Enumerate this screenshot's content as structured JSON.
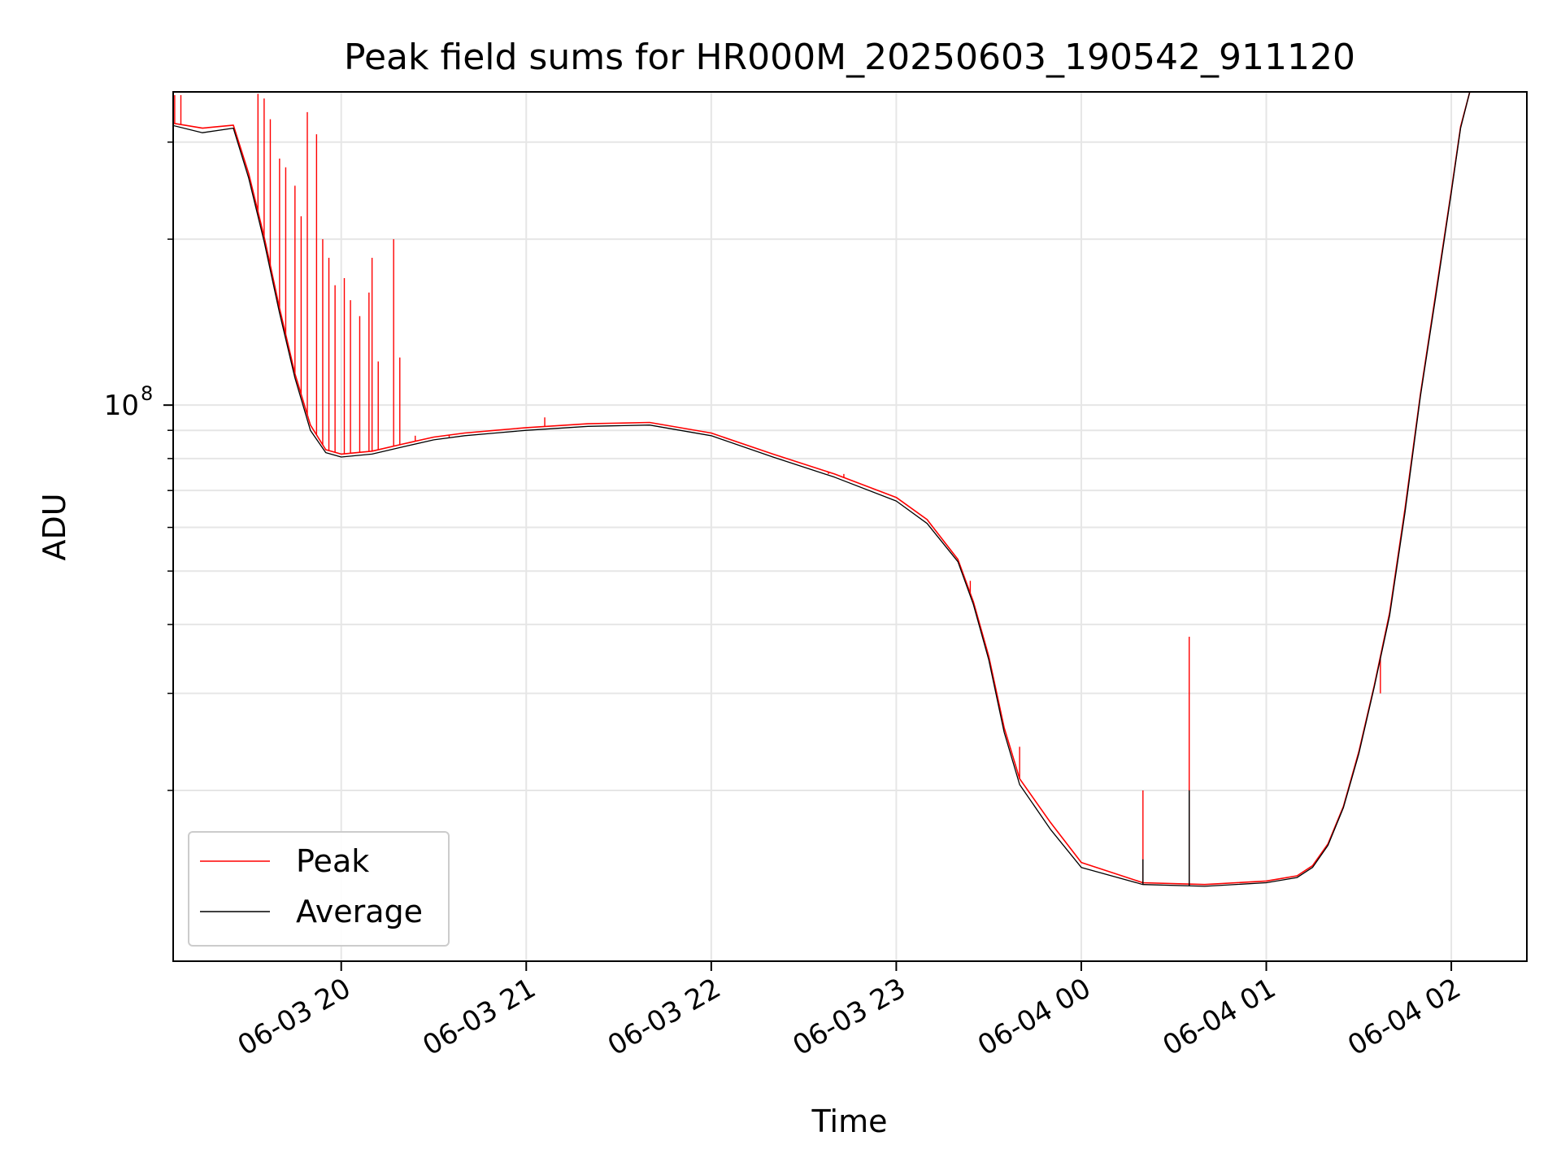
{
  "chart_data": {
    "type": "line",
    "title": "Peak field sums for HR000M_20250603_190542_911120",
    "xlabel": "Time",
    "ylabel": "ADU",
    "y_scale": "log",
    "ylim": [
      9800000,
      370000000
    ],
    "xlim": [
      "2025-06-03 19:05:30",
      "2025-06-04 02:24:30"
    ],
    "grid": true,
    "legend_placement": "lower-left",
    "x_ticks": [
      {
        "value": "2025-06-03 20:00",
        "label": "06-03 20"
      },
      {
        "value": "2025-06-03 21:00",
        "label": "06-03 21"
      },
      {
        "value": "2025-06-03 22:00",
        "label": "06-03 22"
      },
      {
        "value": "2025-06-03 23:00",
        "label": "06-03 23"
      },
      {
        "value": "2025-06-04 00:00",
        "label": "06-04 00"
      },
      {
        "value": "2025-06-04 01:00",
        "label": "06-04 01"
      },
      {
        "value": "2025-06-04 02:00",
        "label": "06-04 02"
      }
    ],
    "y_major_ticks": [
      {
        "value": 100000000,
        "base": "10",
        "exp": "8"
      }
    ],
    "y_minor_ticks": [
      20000000,
      30000000,
      40000000,
      50000000,
      60000000,
      70000000,
      80000000,
      90000000,
      200000000,
      300000000
    ],
    "series": [
      {
        "name": "Peak",
        "color": "#ff0000",
        "x": [
          "2025-06-03 19:05",
          "2025-06-03 19:15",
          "2025-06-03 19:25",
          "2025-06-03 19:30",
          "2025-06-03 19:35",
          "2025-06-03 19:40",
          "2025-06-03 19:45",
          "2025-06-03 19:50",
          "2025-06-03 19:55",
          "2025-06-03 20:00",
          "2025-06-03 20:10",
          "2025-06-03 20:20",
          "2025-06-03 20:30",
          "2025-06-03 20:40",
          "2025-06-03 20:50",
          "2025-06-03 21:00",
          "2025-06-03 21:20",
          "2025-06-03 21:40",
          "2025-06-03 22:00",
          "2025-06-03 22:20",
          "2025-06-03 22:40",
          "2025-06-03 23:00",
          "2025-06-03 23:10",
          "2025-06-03 23:20",
          "2025-06-03 23:25",
          "2025-06-03 23:30",
          "2025-06-03 23:35",
          "2025-06-03 23:40",
          "2025-06-03 23:50",
          "2025-06-04 00:00",
          "2025-06-04 00:20",
          "2025-06-04 00:40",
          "2025-06-04 01:00",
          "2025-06-04 01:10",
          "2025-06-04 01:15",
          "2025-06-04 01:20",
          "2025-06-04 01:25",
          "2025-06-04 01:30",
          "2025-06-04 01:35",
          "2025-06-04 01:40",
          "2025-06-04 01:45",
          "2025-06-04 01:50",
          "2025-06-04 01:55",
          "2025-06-04 02:00",
          "2025-06-04 02:03",
          "2025-06-04 02:06"
        ],
        "values": [
          325000000,
          318000000,
          322000000,
          263000000,
          202000000,
          150000000,
          114000000,
          92000000,
          83000000,
          81500000,
          82500000,
          85000000,
          87500000,
          89000000,
          90000000,
          91000000,
          92500000,
          93000000,
          89000000,
          81500000,
          75000000,
          68000000,
          62000000,
          52500000,
          44000000,
          35000000,
          26000000,
          21000000,
          17500000,
          14800000,
          13600000,
          13500000,
          13700000,
          14000000,
          14600000,
          16000000,
          18700000,
          23500000,
          31000000,
          42000000,
          65000000,
          105000000,
          160000000,
          245000000,
          320000000,
          370000000
        ],
        "spikes": [
          {
            "x": "2025-06-03 19:06",
            "value": 365000000
          },
          {
            "x": "2025-06-03 19:08",
            "value": 365000000
          },
          {
            "x": "2025-06-03 19:33",
            "value": 367000000
          },
          {
            "x": "2025-06-03 19:35",
            "value": 360000000
          },
          {
            "x": "2025-06-03 19:37",
            "value": 330000000
          },
          {
            "x": "2025-06-03 19:40",
            "value": 280000000
          },
          {
            "x": "2025-06-03 19:42",
            "value": 270000000
          },
          {
            "x": "2025-06-03 19:45",
            "value": 250000000
          },
          {
            "x": "2025-06-03 19:47",
            "value": 220000000
          },
          {
            "x": "2025-06-03 19:49",
            "value": 340000000
          },
          {
            "x": "2025-06-03 19:52",
            "value": 310000000
          },
          {
            "x": "2025-06-03 19:54",
            "value": 200000000
          },
          {
            "x": "2025-06-03 19:56",
            "value": 185000000
          },
          {
            "x": "2025-06-03 19:58",
            "value": 165000000
          },
          {
            "x": "2025-06-03 20:01",
            "value": 170000000
          },
          {
            "x": "2025-06-03 20:03",
            "value": 155000000
          },
          {
            "x": "2025-06-03 20:06",
            "value": 145000000
          },
          {
            "x": "2025-06-03 20:09",
            "value": 160000000
          },
          {
            "x": "2025-06-03 20:10",
            "value": 185000000
          },
          {
            "x": "2025-06-03 20:12",
            "value": 120000000
          },
          {
            "x": "2025-06-03 20:17",
            "value": 200000000
          },
          {
            "x": "2025-06-03 20:19",
            "value": 122000000
          },
          {
            "x": "2025-06-03 20:24",
            "value": 88000000
          },
          {
            "x": "2025-06-03 20:35",
            "value": 87500000
          },
          {
            "x": "2025-06-03 21:06",
            "value": 95000000
          },
          {
            "x": "2025-06-03 22:38",
            "value": 75000000
          },
          {
            "x": "2025-06-03 22:43",
            "value": 75000000
          },
          {
            "x": "2025-06-03 23:24",
            "value": 48000000
          },
          {
            "x": "2025-06-03 23:40",
            "value": 24000000
          },
          {
            "x": "2025-06-04 00:20",
            "value": 20000000
          },
          {
            "x": "2025-06-04 00:35",
            "value": 38000000
          },
          {
            "x": "2025-06-04 01:37",
            "value": 30000000
          }
        ]
      },
      {
        "name": "Average",
        "color": "#000000",
        "x": [
          "2025-06-03 19:05",
          "2025-06-03 19:15",
          "2025-06-03 19:25",
          "2025-06-03 19:30",
          "2025-06-03 19:35",
          "2025-06-03 19:40",
          "2025-06-03 19:45",
          "2025-06-03 19:50",
          "2025-06-03 19:55",
          "2025-06-03 20:00",
          "2025-06-03 20:10",
          "2025-06-03 20:20",
          "2025-06-03 20:30",
          "2025-06-03 20:40",
          "2025-06-03 20:50",
          "2025-06-03 21:00",
          "2025-06-03 21:20",
          "2025-06-03 21:40",
          "2025-06-03 22:00",
          "2025-06-03 22:20",
          "2025-06-03 22:40",
          "2025-06-03 23:00",
          "2025-06-03 23:10",
          "2025-06-03 23:20",
          "2025-06-03 23:25",
          "2025-06-03 23:30",
          "2025-06-03 23:35",
          "2025-06-03 23:40",
          "2025-06-03 23:50",
          "2025-06-04 00:00",
          "2025-06-04 00:20",
          "2025-06-04 00:40",
          "2025-06-04 01:00",
          "2025-06-04 01:10",
          "2025-06-04 01:15",
          "2025-06-04 01:20",
          "2025-06-04 01:25",
          "2025-06-04 01:30",
          "2025-06-04 01:35",
          "2025-06-04 01:40",
          "2025-06-04 01:45",
          "2025-06-04 01:50",
          "2025-06-04 01:55",
          "2025-06-04 02:00",
          "2025-06-04 02:03",
          "2025-06-04 02:06"
        ],
        "values": [
          322000000,
          312000000,
          318000000,
          258000000,
          198000000,
          147000000,
          112000000,
          90000000,
          82000000,
          80500000,
          81500000,
          84000000,
          86500000,
          88000000,
          89000000,
          90000000,
          91500000,
          92000000,
          88000000,
          80500000,
          74000000,
          67000000,
          61000000,
          52000000,
          43500000,
          34500000,
          25500000,
          20500000,
          17000000,
          14500000,
          13500000,
          13400000,
          13600000,
          13900000,
          14500000,
          15900000,
          18600000,
          23300000,
          30800000,
          41500000,
          64000000,
          104000000,
          158000000,
          243000000,
          318000000,
          370000000
        ],
        "spikes": [
          {
            "x": "2025-06-04 00:20",
            "value": 15000000
          },
          {
            "x": "2025-06-04 00:35",
            "value": 20000000
          }
        ]
      }
    ]
  }
}
